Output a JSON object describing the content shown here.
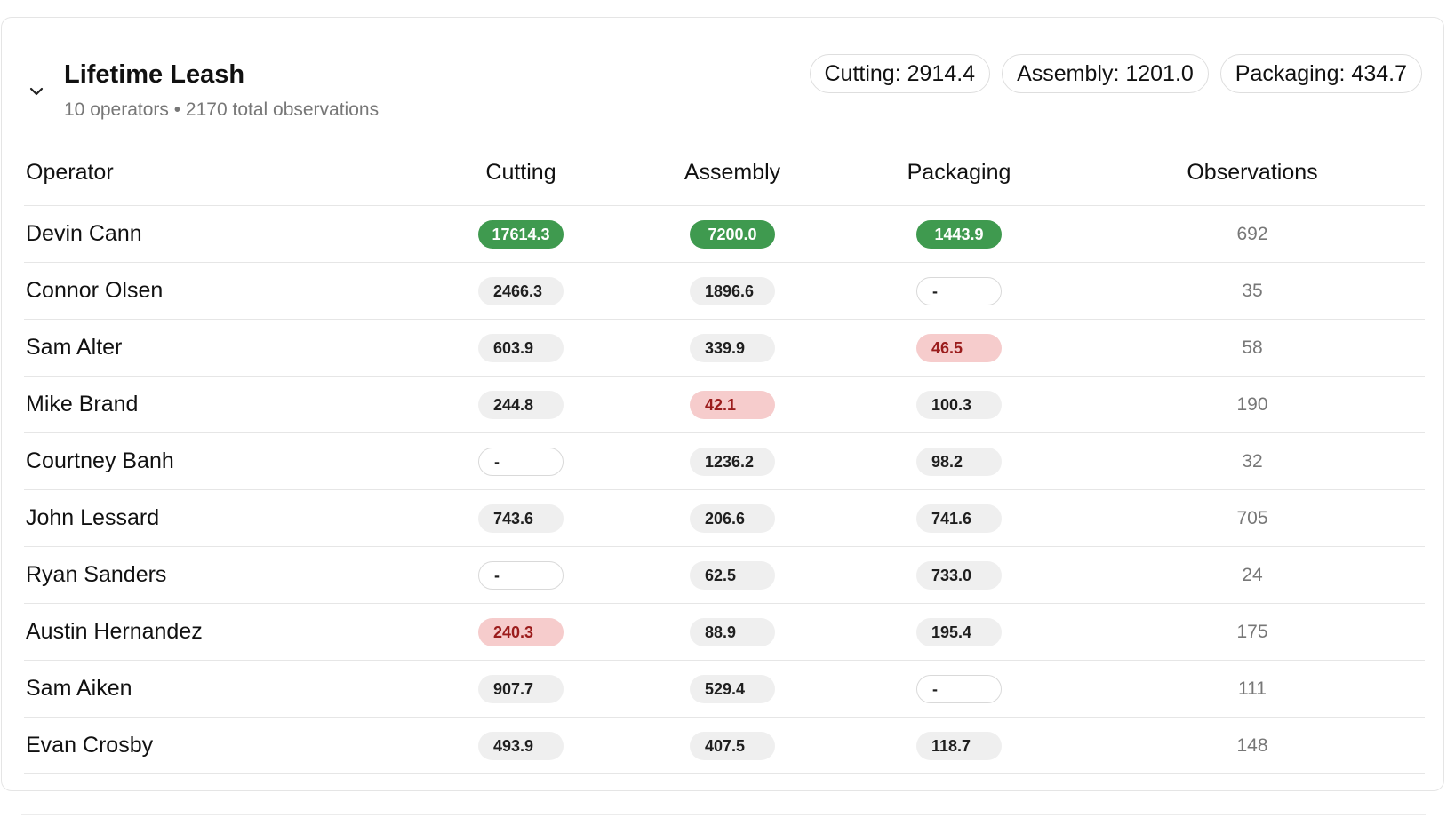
{
  "group": {
    "title": "Lifetime Leash",
    "subtitle": "10 operators • 2170 total observations",
    "summary": [
      "Cutting: 2914.4",
      "Assembly: 1201.0",
      "Packaging: 434.7"
    ]
  },
  "table": {
    "columns": [
      "Operator",
      "Cutting",
      "Assembly",
      "Packaging",
      "Observations"
    ],
    "rows": [
      {
        "operator": "Devin Cann",
        "cutting": "17614.3",
        "assembly": "7200.0",
        "packaging": "1443.9",
        "observations": "692",
        "cutting_status": "best",
        "assembly_status": "best",
        "packaging_status": "best"
      },
      {
        "operator": "Connor Olsen",
        "cutting": "2466.3",
        "assembly": "1896.6",
        "packaging": "-",
        "observations": "35",
        "cutting_status": "normal",
        "assembly_status": "normal",
        "packaging_status": "empty"
      },
      {
        "operator": "Sam Alter",
        "cutting": "603.9",
        "assembly": "339.9",
        "packaging": "46.5",
        "observations": "58",
        "cutting_status": "normal",
        "assembly_status": "normal",
        "packaging_status": "worst"
      },
      {
        "operator": "Mike Brand",
        "cutting": "244.8",
        "assembly": "42.1",
        "packaging": "100.3",
        "observations": "190",
        "cutting_status": "normal",
        "assembly_status": "worst",
        "packaging_status": "normal"
      },
      {
        "operator": "Courtney Banh",
        "cutting": "-",
        "assembly": "1236.2",
        "packaging": "98.2",
        "observations": "32",
        "cutting_status": "empty",
        "assembly_status": "normal",
        "packaging_status": "normal"
      },
      {
        "operator": "John Lessard",
        "cutting": "743.6",
        "assembly": "206.6",
        "packaging": "741.6",
        "observations": "705",
        "cutting_status": "normal",
        "assembly_status": "normal",
        "packaging_status": "normal"
      },
      {
        "operator": "Ryan Sanders",
        "cutting": "-",
        "assembly": "62.5",
        "packaging": "733.0",
        "observations": "24",
        "cutting_status": "empty",
        "assembly_status": "normal",
        "packaging_status": "normal"
      },
      {
        "operator": "Austin Hernandez",
        "cutting": "240.3",
        "assembly": "88.9",
        "packaging": "195.4",
        "observations": "175",
        "cutting_status": "worst",
        "assembly_status": "normal",
        "packaging_status": "normal"
      },
      {
        "operator": "Sam Aiken",
        "cutting": "907.7",
        "assembly": "529.4",
        "packaging": "-",
        "observations": "111",
        "cutting_status": "normal",
        "assembly_status": "normal",
        "packaging_status": "empty"
      },
      {
        "operator": "Evan Crosby",
        "cutting": "493.9",
        "assembly": "407.5",
        "packaging": "118.7",
        "observations": "148",
        "cutting_status": "normal",
        "assembly_status": "normal",
        "packaging_status": "normal"
      }
    ]
  },
  "icons": {
    "collapse": "chevron-down-icon"
  },
  "colors": {
    "best": "#3f9a4f",
    "worst_bg": "#f6cccc",
    "worst_text": "#9b1c1c",
    "neutral_bg": "#efefef"
  }
}
